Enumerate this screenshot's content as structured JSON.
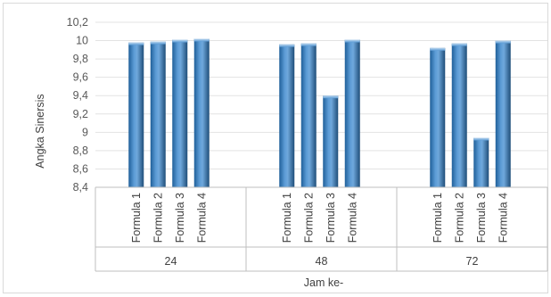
{
  "chart_data": {
    "type": "bar",
    "title": "",
    "ylabel": "Angka Sinersis",
    "xlabel": "Jam ke-",
    "ylim": [
      8.4,
      10.2
    ],
    "ytick_labels": [
      "8,4",
      "8,6",
      "8,8",
      "9",
      "9,2",
      "9,4",
      "9,6",
      "9,8",
      "10",
      "10,2"
    ],
    "ytick_values": [
      8.4,
      8.6,
      8.8,
      9.0,
      9.2,
      9.4,
      9.6,
      9.8,
      10.0,
      10.2
    ],
    "grid": true,
    "groups": [
      {
        "label": "24",
        "categories": [
          "Formula 1",
          "Formula 2",
          "Formula 3",
          "Formula 4"
        ],
        "values": [
          9.98,
          9.99,
          10.01,
          10.02
        ]
      },
      {
        "label": "48",
        "categories": [
          "Formula 1",
          "Formula 2",
          "Formula 3",
          "Formula 4"
        ],
        "values": [
          9.96,
          9.97,
          9.4,
          10.01
        ]
      },
      {
        "label": "72",
        "categories": [
          "Formula 1",
          "Formula 2",
          "Formula 3",
          "Formula 4"
        ],
        "values": [
          9.92,
          9.97,
          8.94,
          10.0
        ]
      }
    ],
    "bar_color": "#2e75b6",
    "bar_highlight": "#9dc3e6"
  }
}
